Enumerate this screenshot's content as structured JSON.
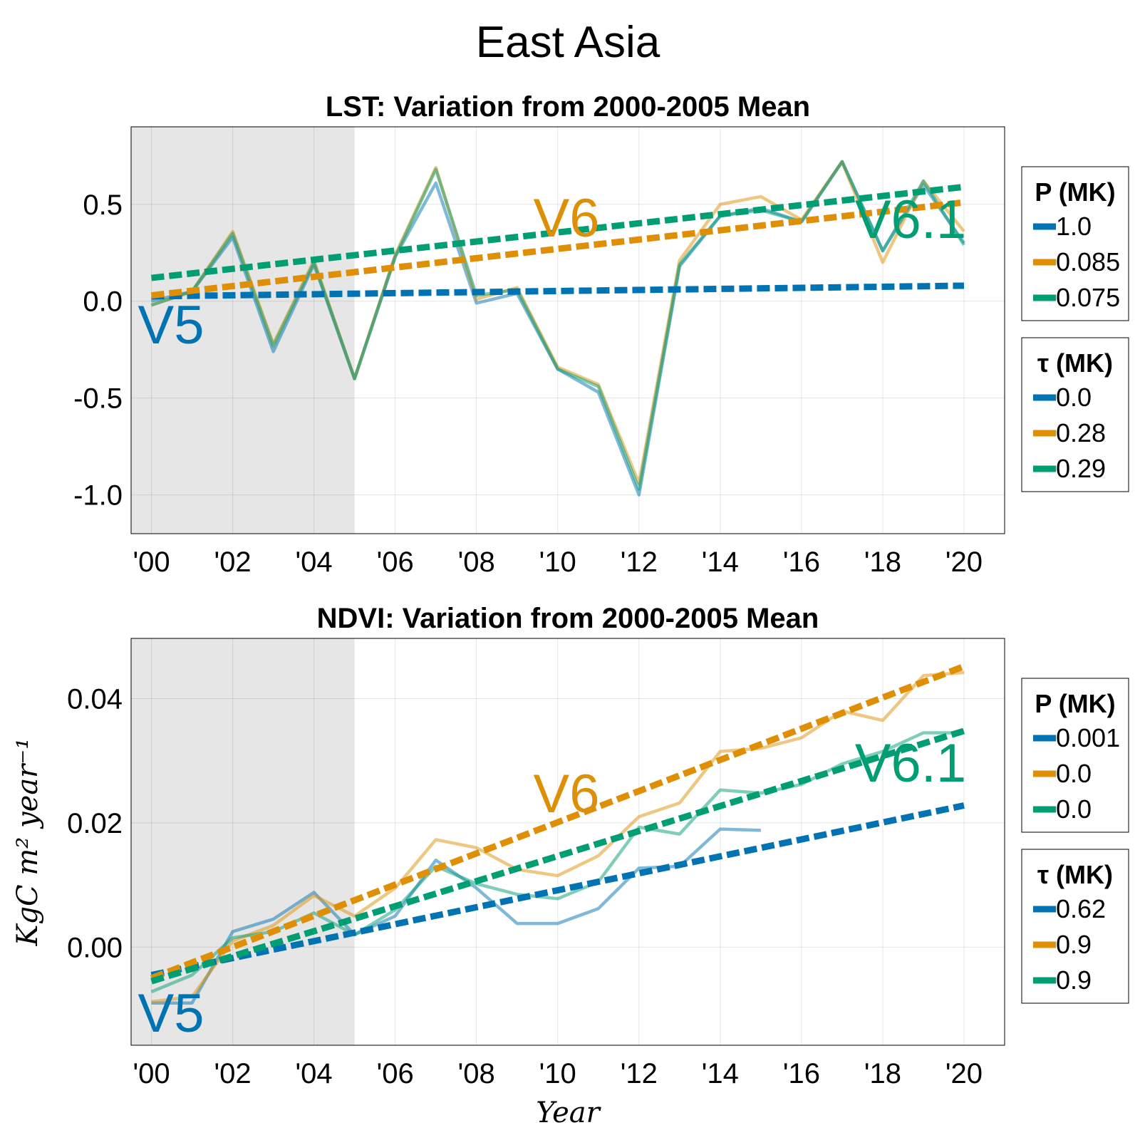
{
  "figure_title": "East Asia",
  "colors": {
    "V5": "#0173b2",
    "V6": "#de8f05",
    "V6.1": "#029e73",
    "baseline_shade": "#e6e6e6"
  },
  "chart_data": [
    {
      "type": "line",
      "title": "LST: Variation from 2000-2005 Mean",
      "xlabel": "",
      "ylabel": "",
      "xlim": [
        -0.5,
        21
      ],
      "ylim": [
        -1.2,
        0.9
      ],
      "grid": true,
      "baseline_period": [
        2000,
        2005
      ],
      "x_ticks": [
        0,
        2,
        4,
        6,
        8,
        10,
        12,
        14,
        16,
        18,
        20
      ],
      "x_tick_labels": [
        "'00",
        "'02",
        "'04",
        "'06",
        "'08",
        "'10",
        "'12",
        "'14",
        "'16",
        "'18",
        "'20"
      ],
      "y_ticks": [
        -1.0,
        -0.5,
        0.0,
        0.5
      ],
      "y_tick_labels": [
        "-1.0",
        "-0.5",
        "0.0",
        "0.5"
      ],
      "x": [
        0,
        1,
        2,
        3,
        4,
        5,
        6,
        7,
        8,
        9,
        10,
        11,
        12,
        13,
        14,
        15,
        16,
        17,
        18,
        19,
        20
      ],
      "series": [
        {
          "name": "V5",
          "values": [
            0.0,
            0.05,
            0.33,
            -0.26,
            0.19,
            -0.4,
            0.23,
            0.61,
            -0.01,
            0.04,
            -0.35,
            -0.47,
            -1.0,
            0.18,
            0.44,
            0.48,
            0.41,
            0.72,
            0.26,
            0.6,
            0.3
          ],
          "trend": [
            0.025,
            0.08
          ]
        },
        {
          "name": "V6",
          "values": [
            -0.02,
            0.05,
            0.36,
            -0.22,
            0.21,
            -0.4,
            0.24,
            0.69,
            0.01,
            0.07,
            -0.34,
            -0.43,
            -0.94,
            0.21,
            0.5,
            0.54,
            0.42,
            0.72,
            0.2,
            0.62,
            0.36
          ],
          "trend": [
            0.03,
            0.51
          ]
        },
        {
          "name": "V6.1",
          "values": [
            -0.02,
            0.05,
            0.35,
            -0.23,
            0.2,
            -0.4,
            0.23,
            0.68,
            0.03,
            0.06,
            -0.35,
            -0.44,
            -0.97,
            0.19,
            0.44,
            0.47,
            0.41,
            0.72,
            0.26,
            0.62,
            0.29
          ],
          "trend": [
            0.12,
            0.59
          ]
        }
      ],
      "labels": [
        {
          "text": "V5",
          "series": "V5"
        },
        {
          "text": "V6",
          "series": "V6"
        },
        {
          "text": "V6.1",
          "series": "V6.1"
        }
      ],
      "legends": [
        {
          "title": "P (MK)",
          "entries": [
            "1.0",
            "0.085",
            "0.075"
          ]
        },
        {
          "title": "τ (MK)",
          "entries": [
            "0.0",
            "0.28",
            "0.29"
          ]
        }
      ]
    },
    {
      "type": "line",
      "title": "NDVI: Variation from 2000-2005 Mean",
      "xlabel": "Year",
      "ylabel": "KgC m² year⁻¹",
      "xlim": [
        -0.5,
        21
      ],
      "ylim": [
        -0.0158,
        0.0497
      ],
      "grid": true,
      "baseline_period": [
        2000,
        2005
      ],
      "x_ticks": [
        0,
        2,
        4,
        6,
        8,
        10,
        12,
        14,
        16,
        18,
        20
      ],
      "x_tick_labels": [
        "'00",
        "'02",
        "'04",
        "'06",
        "'08",
        "'10",
        "'12",
        "'14",
        "'16",
        "'18",
        "'20"
      ],
      "y_ticks": [
        0.0,
        0.02,
        0.04
      ],
      "y_tick_labels": [
        "0.00",
        "0.02",
        "0.04"
      ],
      "x": [
        0,
        1,
        2,
        3,
        4,
        5,
        6,
        7,
        8,
        9,
        10,
        11,
        12,
        13,
        14,
        15,
        16,
        17,
        18,
        19,
        20
      ],
      "series": [
        {
          "name": "V5",
          "values": [
            -0.009,
            -0.009,
            0.0025,
            0.0045,
            0.0088,
            0.002,
            0.005,
            0.014,
            0.0095,
            0.0038,
            0.0038,
            0.0062,
            0.0127,
            0.013,
            0.019,
            0.0188,
            null,
            null,
            null,
            null,
            null
          ],
          "trend": [
            -0.0045,
            0.0228
          ]
        },
        {
          "name": "V6",
          "values": [
            -0.0088,
            -0.008,
            0.001,
            0.0035,
            0.0083,
            0.005,
            0.0095,
            0.0173,
            0.016,
            0.0125,
            0.0115,
            0.0147,
            0.021,
            0.0232,
            0.0315,
            0.032,
            0.0337,
            0.038,
            0.0365,
            0.0437,
            0.0442
          ],
          "trend": [
            -0.005,
            0.0452
          ]
        },
        {
          "name": "V6.1",
          "values": [
            -0.0072,
            -0.0045,
            0.0015,
            0.0025,
            0.0055,
            0.002,
            0.006,
            0.013,
            0.0102,
            0.0085,
            0.0078,
            0.0105,
            0.0193,
            0.0182,
            0.0253,
            0.0248,
            0.0262,
            0.0295,
            0.0315,
            0.0345,
            0.0345
          ],
          "trend": [
            -0.0055,
            0.0348
          ]
        }
      ],
      "labels": [
        {
          "text": "V5",
          "series": "V5"
        },
        {
          "text": "V6",
          "series": "V6"
        },
        {
          "text": "V6.1",
          "series": "V6.1"
        }
      ],
      "legends": [
        {
          "title": "P (MK)",
          "entries": [
            "0.001",
            "0.0",
            "0.0"
          ]
        },
        {
          "title": "τ (MK)",
          "entries": [
            "0.62",
            "0.9",
            "0.9"
          ]
        }
      ]
    }
  ]
}
